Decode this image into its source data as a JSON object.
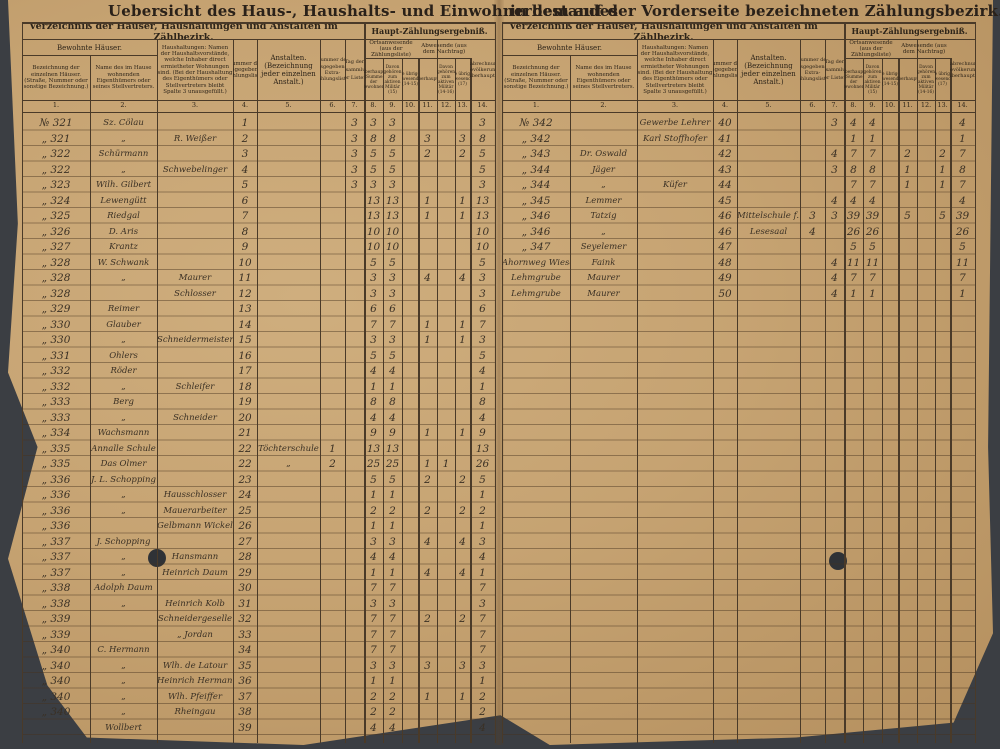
{
  "document": {
    "title_left": "Uebersicht des Haus-, Haushalts- und Einwohnerbestandes",
    "title_right": "in dem auf der Vorderseite bezeichneten Zählungsbezirk.",
    "header": {
      "section": "Verzeichniß der Häuser, Haushaltungen und Anstalten im Zählbezirk.",
      "main_result": "Haupt-Zählungsergebniß.",
      "inhabited": "Bewohnte Häuser.",
      "col1": "Bezeichnung der einzelnen Häuser. (Straße, Nummer oder sonstige Bezeichnung.)",
      "col2": "Name des im Hause wohnenden Eigenthümers oder seines Stellvertreters.",
      "col3": "Haushaltungen: Namen der Haushaltsvorstände, welche Inhaber direct ermietheter Wohnungen sind. (Bei der Haushaltung des Eigenthümers oder Stellvertreters bleibt Spalte 3 unausgefüllt.)",
      "col4": "Nummer der ausgegebenen Zählungsliste.",
      "col5": "Anstalten. (Bezeichnung jeder einzelnen Anstalt.)",
      "col6": "Nummer der ausgegebenen Extra-Zählungsliste.",
      "col7": "Tag der Einsammlung der Listen.",
      "present": "Ortsanwesende (aus der Zählungsliste)",
      "col8": "überhaupt (Summe der Bewohner)",
      "col9": "Davon gehören zum aktiven Militär (15)",
      "col10": "Die übrigen Anwesenden (14-15)",
      "absent": "Abwesende (aus dem Nachtrag)",
      "col11": "überhaupt.",
      "col12": "Davon gehören zum aktiven Militär (14-16)",
      "col13": "Die übrigen Abwesenden (17)",
      "col14": "Zollabrechnungs-Bevölkerung überhaupt.",
      "column_numbers": [
        "1.",
        "2.",
        "3.",
        "4.",
        "5.",
        "6.",
        "7.",
        "8.",
        "9.",
        "10.",
        "11.",
        "12.",
        "13.",
        "14."
      ]
    },
    "left_rows": [
      [
        "№ 321",
        "Sz. Cölau",
        "",
        "1",
        "",
        "",
        "3",
        "3",
        "3",
        "",
        "",
        "",
        "",
        "3"
      ],
      [
        "„ 321",
        "„",
        "R. Weißer",
        "2",
        "",
        "",
        "3",
        "8",
        "8",
        "",
        "3",
        "",
        "3",
        "8"
      ],
      [
        "„ 322",
        "Schürmann",
        "",
        "3",
        "",
        "",
        "3",
        "5",
        "5",
        "",
        "2",
        "",
        "2",
        "5"
      ],
      [
        "„ 322",
        "„",
        "Schwebelinger",
        "4",
        "",
        "",
        "3",
        "5",
        "5",
        "",
        "",
        "",
        "",
        "5"
      ],
      [
        "„ 323",
        "Wilh. Gilbert",
        "",
        "5",
        "",
        "",
        "3",
        "3",
        "3",
        "",
        "",
        "",
        "",
        "3"
      ],
      [
        "„ 324",
        "Lewengütt",
        "",
        "6",
        "",
        "",
        "",
        "13",
        "13",
        "",
        "1",
        "",
        "1",
        "13"
      ],
      [
        "„ 325",
        "Riedgal",
        "",
        "7",
        "",
        "",
        "",
        "13",
        "13",
        "",
        "1",
        "",
        "1",
        "13"
      ],
      [
        "„ 326",
        "D. Aris",
        "",
        "8",
        "",
        "",
        "",
        "10",
        "10",
        "",
        "",
        "",
        "",
        "10"
      ],
      [
        "„ 327",
        "Krantz",
        "",
        "9",
        "",
        "",
        "",
        "10",
        "10",
        "",
        "",
        "",
        "",
        "10"
      ],
      [
        "„ 328",
        "W. Schwank",
        "",
        "10",
        "",
        "",
        "",
        "5",
        "5",
        "",
        "",
        "",
        "",
        "5"
      ],
      [
        "„ 328",
        "„",
        "Maurer",
        "11",
        "",
        "",
        "",
        "3",
        "3",
        "",
        "4",
        "",
        "4",
        "3"
      ],
      [
        "„ 328",
        "",
        "Schlosser",
        "12",
        "",
        "",
        "",
        "3",
        "3",
        "",
        "",
        "",
        "",
        "3"
      ],
      [
        "„ 329",
        "Reimer",
        "",
        "13",
        "",
        "",
        "",
        "6",
        "6",
        "",
        "",
        "",
        "",
        "6"
      ],
      [
        "„ 330",
        "Glauber",
        "",
        "14",
        "",
        "",
        "",
        "7",
        "7",
        "",
        "1",
        "",
        "1",
        "7"
      ],
      [
        "„ 330",
        "„",
        "Schneidermeister",
        "15",
        "",
        "",
        "",
        "3",
        "3",
        "",
        "1",
        "",
        "1",
        "3"
      ],
      [
        "„ 331",
        "Ohlers",
        "",
        "16",
        "",
        "",
        "",
        "5",
        "5",
        "",
        "",
        "",
        "",
        "5"
      ],
      [
        "„ 332",
        "Röder",
        "",
        "17",
        "",
        "",
        "",
        "4",
        "4",
        "",
        "",
        "",
        "",
        "4"
      ],
      [
        "„ 332",
        "„",
        "Schleifer",
        "18",
        "",
        "",
        "",
        "1",
        "1",
        "",
        "",
        "",
        "",
        "1"
      ],
      [
        "„ 333",
        "Berg",
        "",
        "19",
        "",
        "",
        "",
        "8",
        "8",
        "",
        "",
        "",
        "",
        "8"
      ],
      [
        "„ 333",
        "„",
        "Schneider",
        "20",
        "",
        "",
        "",
        "4",
        "4",
        "",
        "",
        "",
        "",
        "4"
      ],
      [
        "„ 334",
        "Wachsmann",
        "",
        "21",
        "",
        "",
        "",
        "9",
        "9",
        "",
        "1",
        "",
        "1",
        "9"
      ],
      [
        "„ 335",
        "Annalle Schule",
        "",
        "22",
        "Töchterschule",
        "1",
        "",
        "13",
        "13",
        "",
        "",
        "",
        "",
        "13"
      ],
      [
        "„ 335",
        "Das Olmer",
        "",
        "22",
        "„",
        "2",
        "",
        "25",
        "25",
        "",
        "1",
        "1",
        "",
        "26"
      ],
      [
        "„ 336",
        "J. L. Schopping",
        "",
        "23",
        "",
        "",
        "",
        "5",
        "5",
        "",
        "2",
        "",
        "2",
        "5"
      ],
      [
        "„ 336",
        "„",
        "Hausschlosser",
        "24",
        "",
        "",
        "",
        "1",
        "1",
        "",
        "",
        "",
        "",
        "1"
      ],
      [
        "„ 336",
        "„",
        "Mauerarbeiter",
        "25",
        "",
        "",
        "",
        "2",
        "2",
        "",
        "2",
        "",
        "2",
        "2"
      ],
      [
        "„ 336",
        "",
        "Gelbmann Wickel",
        "26",
        "",
        "",
        "",
        "1",
        "1",
        "",
        "",
        "",
        "",
        "1"
      ],
      [
        "„ 337",
        "J. Schopping",
        "",
        "27",
        "",
        "",
        "",
        "3",
        "3",
        "",
        "4",
        "",
        "4",
        "3"
      ],
      [
        "„ 337",
        "„",
        "Hansmann",
        "28",
        "",
        "",
        "",
        "4",
        "4",
        "",
        "",
        "",
        "",
        "4"
      ],
      [
        "„ 337",
        "„",
        "Heinrich Daum",
        "29",
        "",
        "",
        "",
        "1",
        "1",
        "",
        "4",
        "",
        "4",
        "1"
      ],
      [
        "„ 338",
        "Adolph Daum",
        "",
        "30",
        "",
        "",
        "",
        "7",
        "7",
        "",
        "",
        "",
        "",
        "7"
      ],
      [
        "„ 338",
        "„",
        "Heinrich Kolb",
        "31",
        "",
        "",
        "",
        "3",
        "3",
        "",
        "",
        "",
        "",
        "3"
      ],
      [
        "„ 339",
        "",
        "Schneidergeselle",
        "32",
        "",
        "",
        "",
        "7",
        "7",
        "",
        "2",
        "",
        "2",
        "7"
      ],
      [
        "„ 339",
        "",
        "„ Jordan",
        "33",
        "",
        "",
        "",
        "7",
        "7",
        "",
        "",
        "",
        "",
        "7"
      ],
      [
        "„ 340",
        "C. Hermann",
        "",
        "34",
        "",
        "",
        "",
        "7",
        "7",
        "",
        "",
        "",
        "",
        "7"
      ],
      [
        "„ 340",
        "„",
        "Wlh. de Latour",
        "35",
        "",
        "",
        "",
        "3",
        "3",
        "",
        "3",
        "",
        "3",
        "3"
      ],
      [
        "„ 340",
        "„",
        "Heinrich Hermann",
        "36",
        "",
        "",
        "",
        "1",
        "1",
        "",
        "",
        "",
        "",
        "1"
      ],
      [
        "„ 340",
        "„",
        "Wlh. Pfeiffer",
        "37",
        "",
        "",
        "",
        "2",
        "2",
        "",
        "1",
        "",
        "1",
        "2"
      ],
      [
        "„ 340",
        "„",
        "Rheingau",
        "38",
        "",
        "",
        "",
        "2",
        "2",
        "",
        "",
        "",
        "",
        "2"
      ],
      [
        "",
        "Wollbert",
        "",
        "39",
        "",
        "",
        "",
        "4",
        "4",
        "",
        "",
        "",
        "",
        "4"
      ]
    ],
    "right_rows": [
      [
        "№ 342",
        "",
        "Gewerbe Lehrer",
        "40",
        "",
        "",
        "3",
        "4",
        "4",
        "",
        "",
        "",
        "",
        "4"
      ],
      [
        "„ 342",
        "",
        "Karl Stoffhofer",
        "41",
        "",
        "",
        "",
        "1",
        "1",
        "",
        "",
        "",
        "",
        "1"
      ],
      [
        "„ 343",
        "Dr. Oswald",
        "",
        "42",
        "",
        "",
        "4",
        "7",
        "7",
        "",
        "2",
        "",
        "2",
        "7"
      ],
      [
        "„ 344",
        "Jäger",
        "",
        "43",
        "",
        "",
        "3",
        "8",
        "8",
        "",
        "1",
        "",
        "1",
        "8"
      ],
      [
        "„ 344",
        "„",
        "Küfer",
        "44",
        "",
        "",
        "",
        "7",
        "7",
        "",
        "1",
        "",
        "1",
        "7"
      ],
      [
        "„ 345",
        "Lemmer",
        "",
        "45",
        "",
        "",
        "4",
        "4",
        "4",
        "",
        "",
        "",
        "",
        "4"
      ],
      [
        "„ 346",
        "Tatzig",
        "",
        "46",
        "Mittelschule f. Knaben",
        "3",
        "3",
        "39",
        "39",
        "",
        "5",
        "",
        "5",
        "39"
      ],
      [
        "„ 346",
        "„",
        "",
        "46",
        "Lesesaal",
        "4",
        "",
        "26",
        "26",
        "",
        "",
        "",
        "",
        "26"
      ],
      [
        "„ 347",
        "Seyelemer",
        "",
        "47",
        "",
        "",
        "",
        "5",
        "5",
        "",
        "",
        "",
        "",
        "5"
      ],
      [
        "Ahornweg Wiese",
        "Faink",
        "",
        "48",
        "",
        "",
        "4",
        "11",
        "11",
        "",
        "",
        "",
        "",
        "11"
      ],
      [
        "Lehmgrube",
        "Maurer",
        "",
        "49",
        "",
        "",
        "4",
        "7",
        "7",
        "",
        "",
        "",
        "",
        "7"
      ],
      [
        "Lehmgrube",
        "Maurer",
        "",
        "50",
        "",
        "",
        "4",
        "1",
        "1",
        "",
        "",
        "",
        "",
        "1"
      ]
    ]
  }
}
